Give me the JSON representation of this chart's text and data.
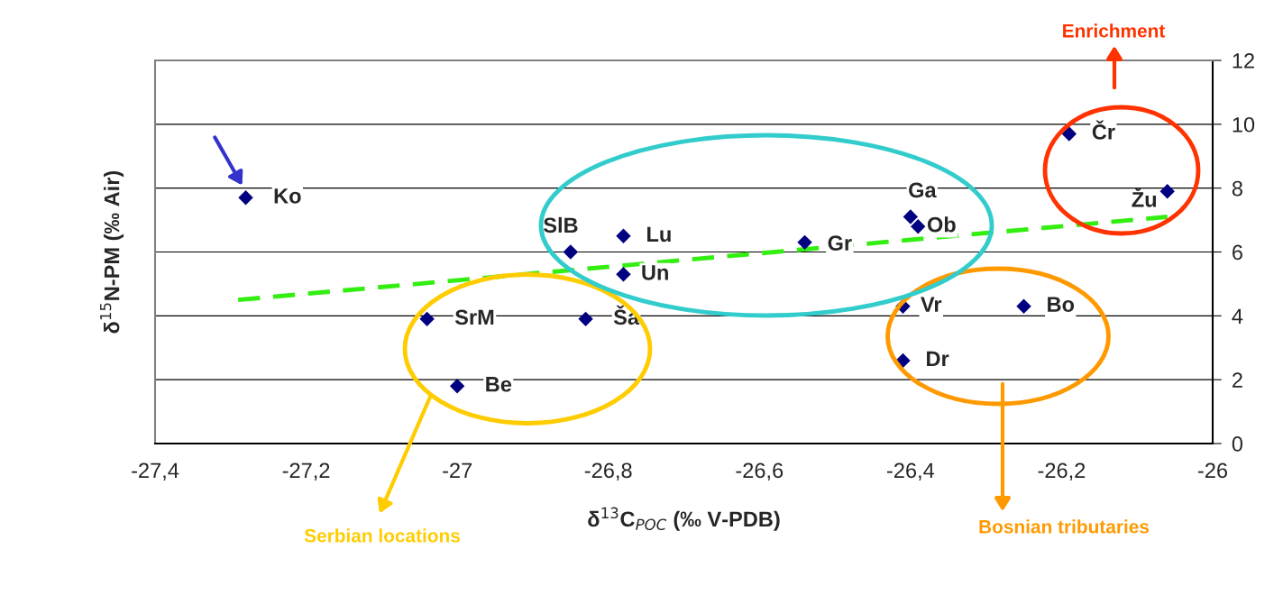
{
  "chart_data": {
    "type": "scatter",
    "xlabel": "δ$^{13}$C$_{POC}$ (‰ V-PDB)",
    "ylabel": "δ$^{15}$N-PM (‰ Air)",
    "xlim": [
      -27.4,
      -26
    ],
    "xticks": [
      {
        "value": -27.4,
        "label": "-27,4"
      },
      {
        "value": -27.2,
        "label": "-27,2"
      },
      {
        "value": -27,
        "label": "-27"
      },
      {
        "value": -26.8,
        "label": "-26,8"
      },
      {
        "value": -26.6,
        "label": "-26,6"
      },
      {
        "value": -26.4,
        "label": "-26,4"
      },
      {
        "value": -26.2,
        "label": "-26,2"
      },
      {
        "value": -26,
        "label": "-26"
      }
    ],
    "ylim": [
      0,
      12
    ],
    "yticks": [
      0,
      2,
      4,
      6,
      8,
      10,
      12
    ],
    "grid": "y",
    "legend": false,
    "series": [
      {
        "color": "#000080",
        "marker": "diamond",
        "x": [
          -27.28,
          -27.04,
          -27.0,
          -26.85,
          -26.78,
          -26.78,
          -26.83,
          -26.54,
          -26.4,
          -26.39,
          -26.41,
          -26.41,
          -26.25,
          -26.19,
          -26.06
        ],
        "values": [
          7.7,
          3.9,
          1.8,
          6.0,
          6.5,
          5.3,
          3.9,
          6.3,
          7.1,
          6.8,
          4.3,
          2.6,
          4.3,
          9.7,
          7.9
        ]
      },
      {
        "type": "line",
        "color": "#33ee11",
        "line_style": "dashed",
        "marker": "none",
        "x": [
          -27.29,
          -26.06
        ],
        "values": [
          4.5,
          7.1
        ]
      }
    ],
    "annotations": [
      "Enrichment",
      "Serbian locations",
      "Bosnian tributaries",
      {
        "text": "Ko",
        "x": -27.28,
        "y": 7.7
      },
      {
        "text": "SrM",
        "x": -27.04,
        "y": 3.9
      },
      {
        "text": "Be",
        "x": -27.0,
        "y": 1.8
      },
      {
        "text": "SlB",
        "x": -26.85,
        "y": 6.0
      },
      {
        "text": "Lu",
        "x": -26.78,
        "y": 6.5
      },
      {
        "text": "Un",
        "x": -26.78,
        "y": 5.3
      },
      {
        "text": "Ša",
        "x": -26.83,
        "y": 3.9
      },
      {
        "text": "Gr",
        "x": -26.54,
        "y": 6.3
      },
      {
        "text": "Ga",
        "x": -26.4,
        "y": 7.1
      },
      {
        "text": "Ob",
        "x": -26.39,
        "y": 6.8
      },
      {
        "text": "Vr",
        "x": -26.41,
        "y": 4.3
      },
      {
        "text": "Dr",
        "x": -26.41,
        "y": 2.6
      },
      {
        "text": "Bo",
        "x": -26.25,
        "y": 4.3
      },
      {
        "text": "Čr",
        "x": -26.19,
        "y": 9.7
      },
      {
        "text": "Žu",
        "x": -26.06,
        "y": 7.9
      }
    ]
  }
}
